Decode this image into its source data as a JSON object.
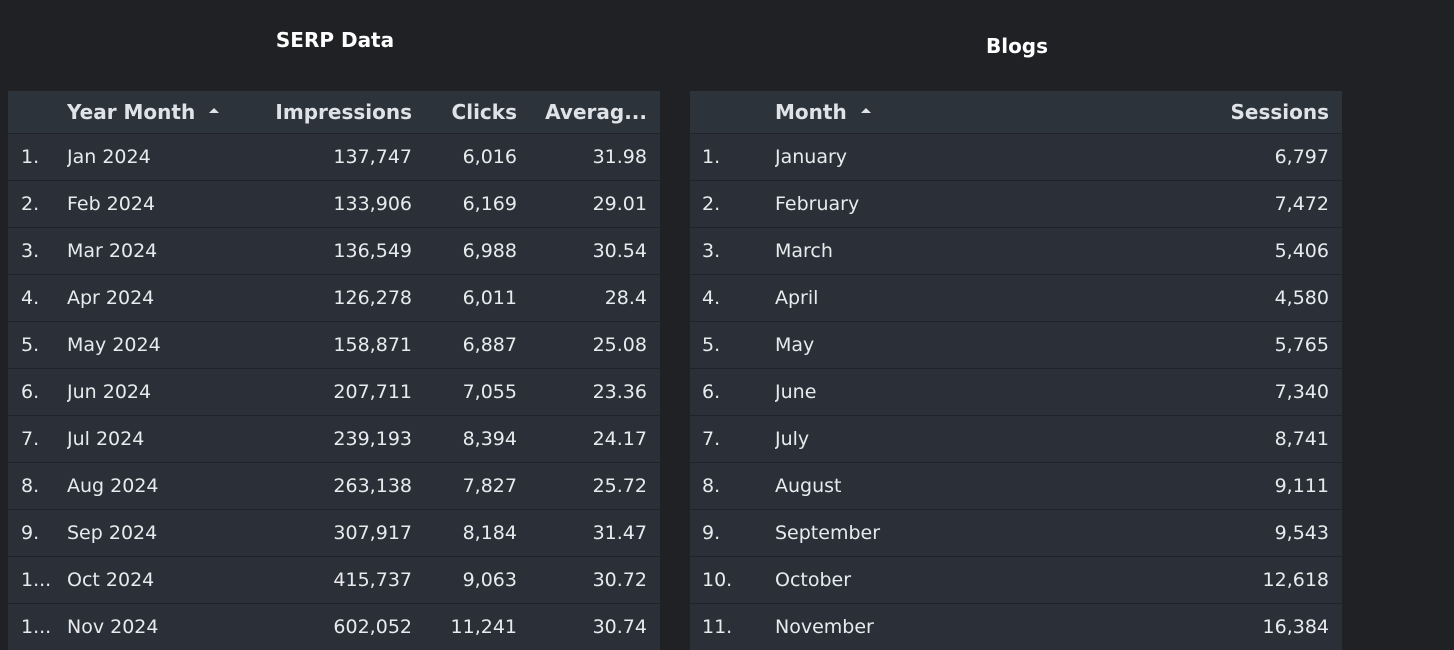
{
  "serp": {
    "title": "SERP Data",
    "headers": {
      "month": "Year Month",
      "impressions": "Impressions",
      "clicks": "Clicks",
      "average": "Averag..."
    },
    "rows": [
      {
        "idx": "1.",
        "month": "Jan 2024",
        "impressions": "137,747",
        "clicks": "6,016",
        "average": "31.98"
      },
      {
        "idx": "2.",
        "month": "Feb 2024",
        "impressions": "133,906",
        "clicks": "6,169",
        "average": "29.01"
      },
      {
        "idx": "3.",
        "month": "Mar 2024",
        "impressions": "136,549",
        "clicks": "6,988",
        "average": "30.54"
      },
      {
        "idx": "4.",
        "month": "Apr 2024",
        "impressions": "126,278",
        "clicks": "6,011",
        "average": "28.4"
      },
      {
        "idx": "5.",
        "month": "May 2024",
        "impressions": "158,871",
        "clicks": "6,887",
        "average": "25.08"
      },
      {
        "idx": "6.",
        "month": "Jun 2024",
        "impressions": "207,711",
        "clicks": "7,055",
        "average": "23.36"
      },
      {
        "idx": "7.",
        "month": "Jul 2024",
        "impressions": "239,193",
        "clicks": "8,394",
        "average": "24.17"
      },
      {
        "idx": "8.",
        "month": "Aug 2024",
        "impressions": "263,138",
        "clicks": "7,827",
        "average": "25.72"
      },
      {
        "idx": "9.",
        "month": "Sep 2024",
        "impressions": "307,917",
        "clicks": "8,184",
        "average": "31.47"
      },
      {
        "idx": "1...",
        "month": "Oct 2024",
        "impressions": "415,737",
        "clicks": "9,063",
        "average": "30.72"
      },
      {
        "idx": "1...",
        "month": "Nov 2024",
        "impressions": "602,052",
        "clicks": "11,241",
        "average": "30.74"
      }
    ]
  },
  "blogs": {
    "title": "Blogs",
    "headers": {
      "month": "Month",
      "sessions": "Sessions"
    },
    "rows": [
      {
        "idx": "1.",
        "month": "January",
        "sessions": "6,797"
      },
      {
        "idx": "2.",
        "month": "February",
        "sessions": "7,472"
      },
      {
        "idx": "3.",
        "month": "March",
        "sessions": "5,406"
      },
      {
        "idx": "4.",
        "month": "April",
        "sessions": "4,580"
      },
      {
        "idx": "5.",
        "month": "May",
        "sessions": "5,765"
      },
      {
        "idx": "6.",
        "month": "June",
        "sessions": "7,340"
      },
      {
        "idx": "7.",
        "month": "July",
        "sessions": "8,741"
      },
      {
        "idx": "8.",
        "month": "August",
        "sessions": "9,111"
      },
      {
        "idx": "9.",
        "month": "September",
        "sessions": "9,543"
      },
      {
        "idx": "10.",
        "month": "October",
        "sessions": "12,618"
      },
      {
        "idx": "11.",
        "month": "November",
        "sessions": "16,384"
      }
    ]
  },
  "icons": {
    "sort": "sort-ascending-icon"
  },
  "colors": {
    "background": "#202124",
    "table_body": "#2b3038",
    "table_header": "#2d333b",
    "row_divider": "#20242a",
    "text": "#e8eaed"
  }
}
